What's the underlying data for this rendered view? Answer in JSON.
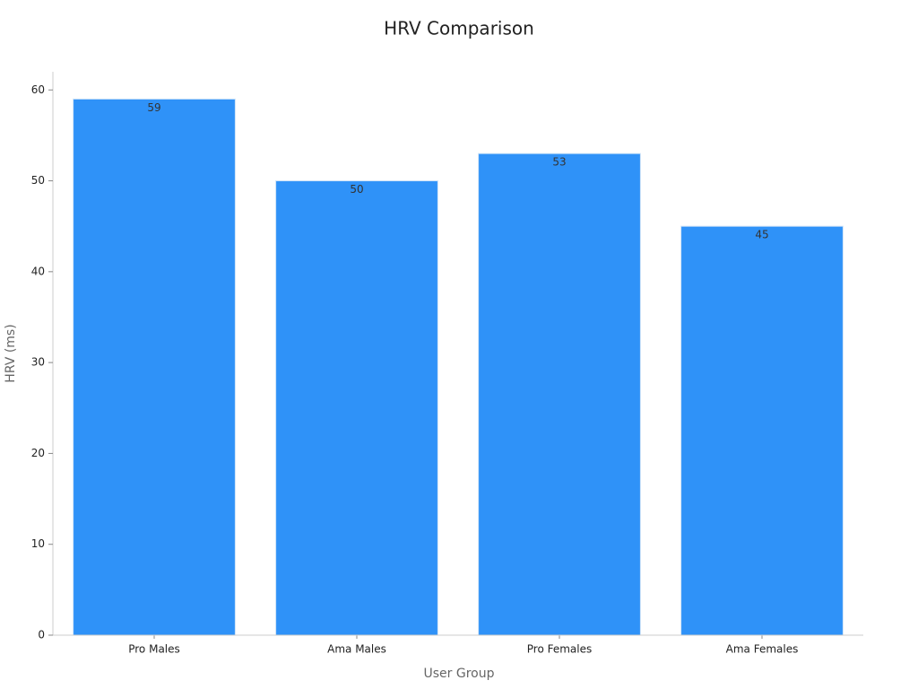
{
  "chart_data": {
    "type": "bar",
    "title": "HRV Comparison",
    "x_label": "User Group",
    "y_label": "HRV (ms)",
    "categories": [
      "Pro Males",
      "Ama Males",
      "Pro Females",
      "Ama Females"
    ],
    "values": [
      59,
      50,
      53,
      45
    ],
    "color": "#2f92f8",
    "ylim": [
      0,
      62
    ],
    "yticks": [
      0,
      10,
      20,
      30,
      40,
      50,
      60
    ],
    "grid": false
  }
}
